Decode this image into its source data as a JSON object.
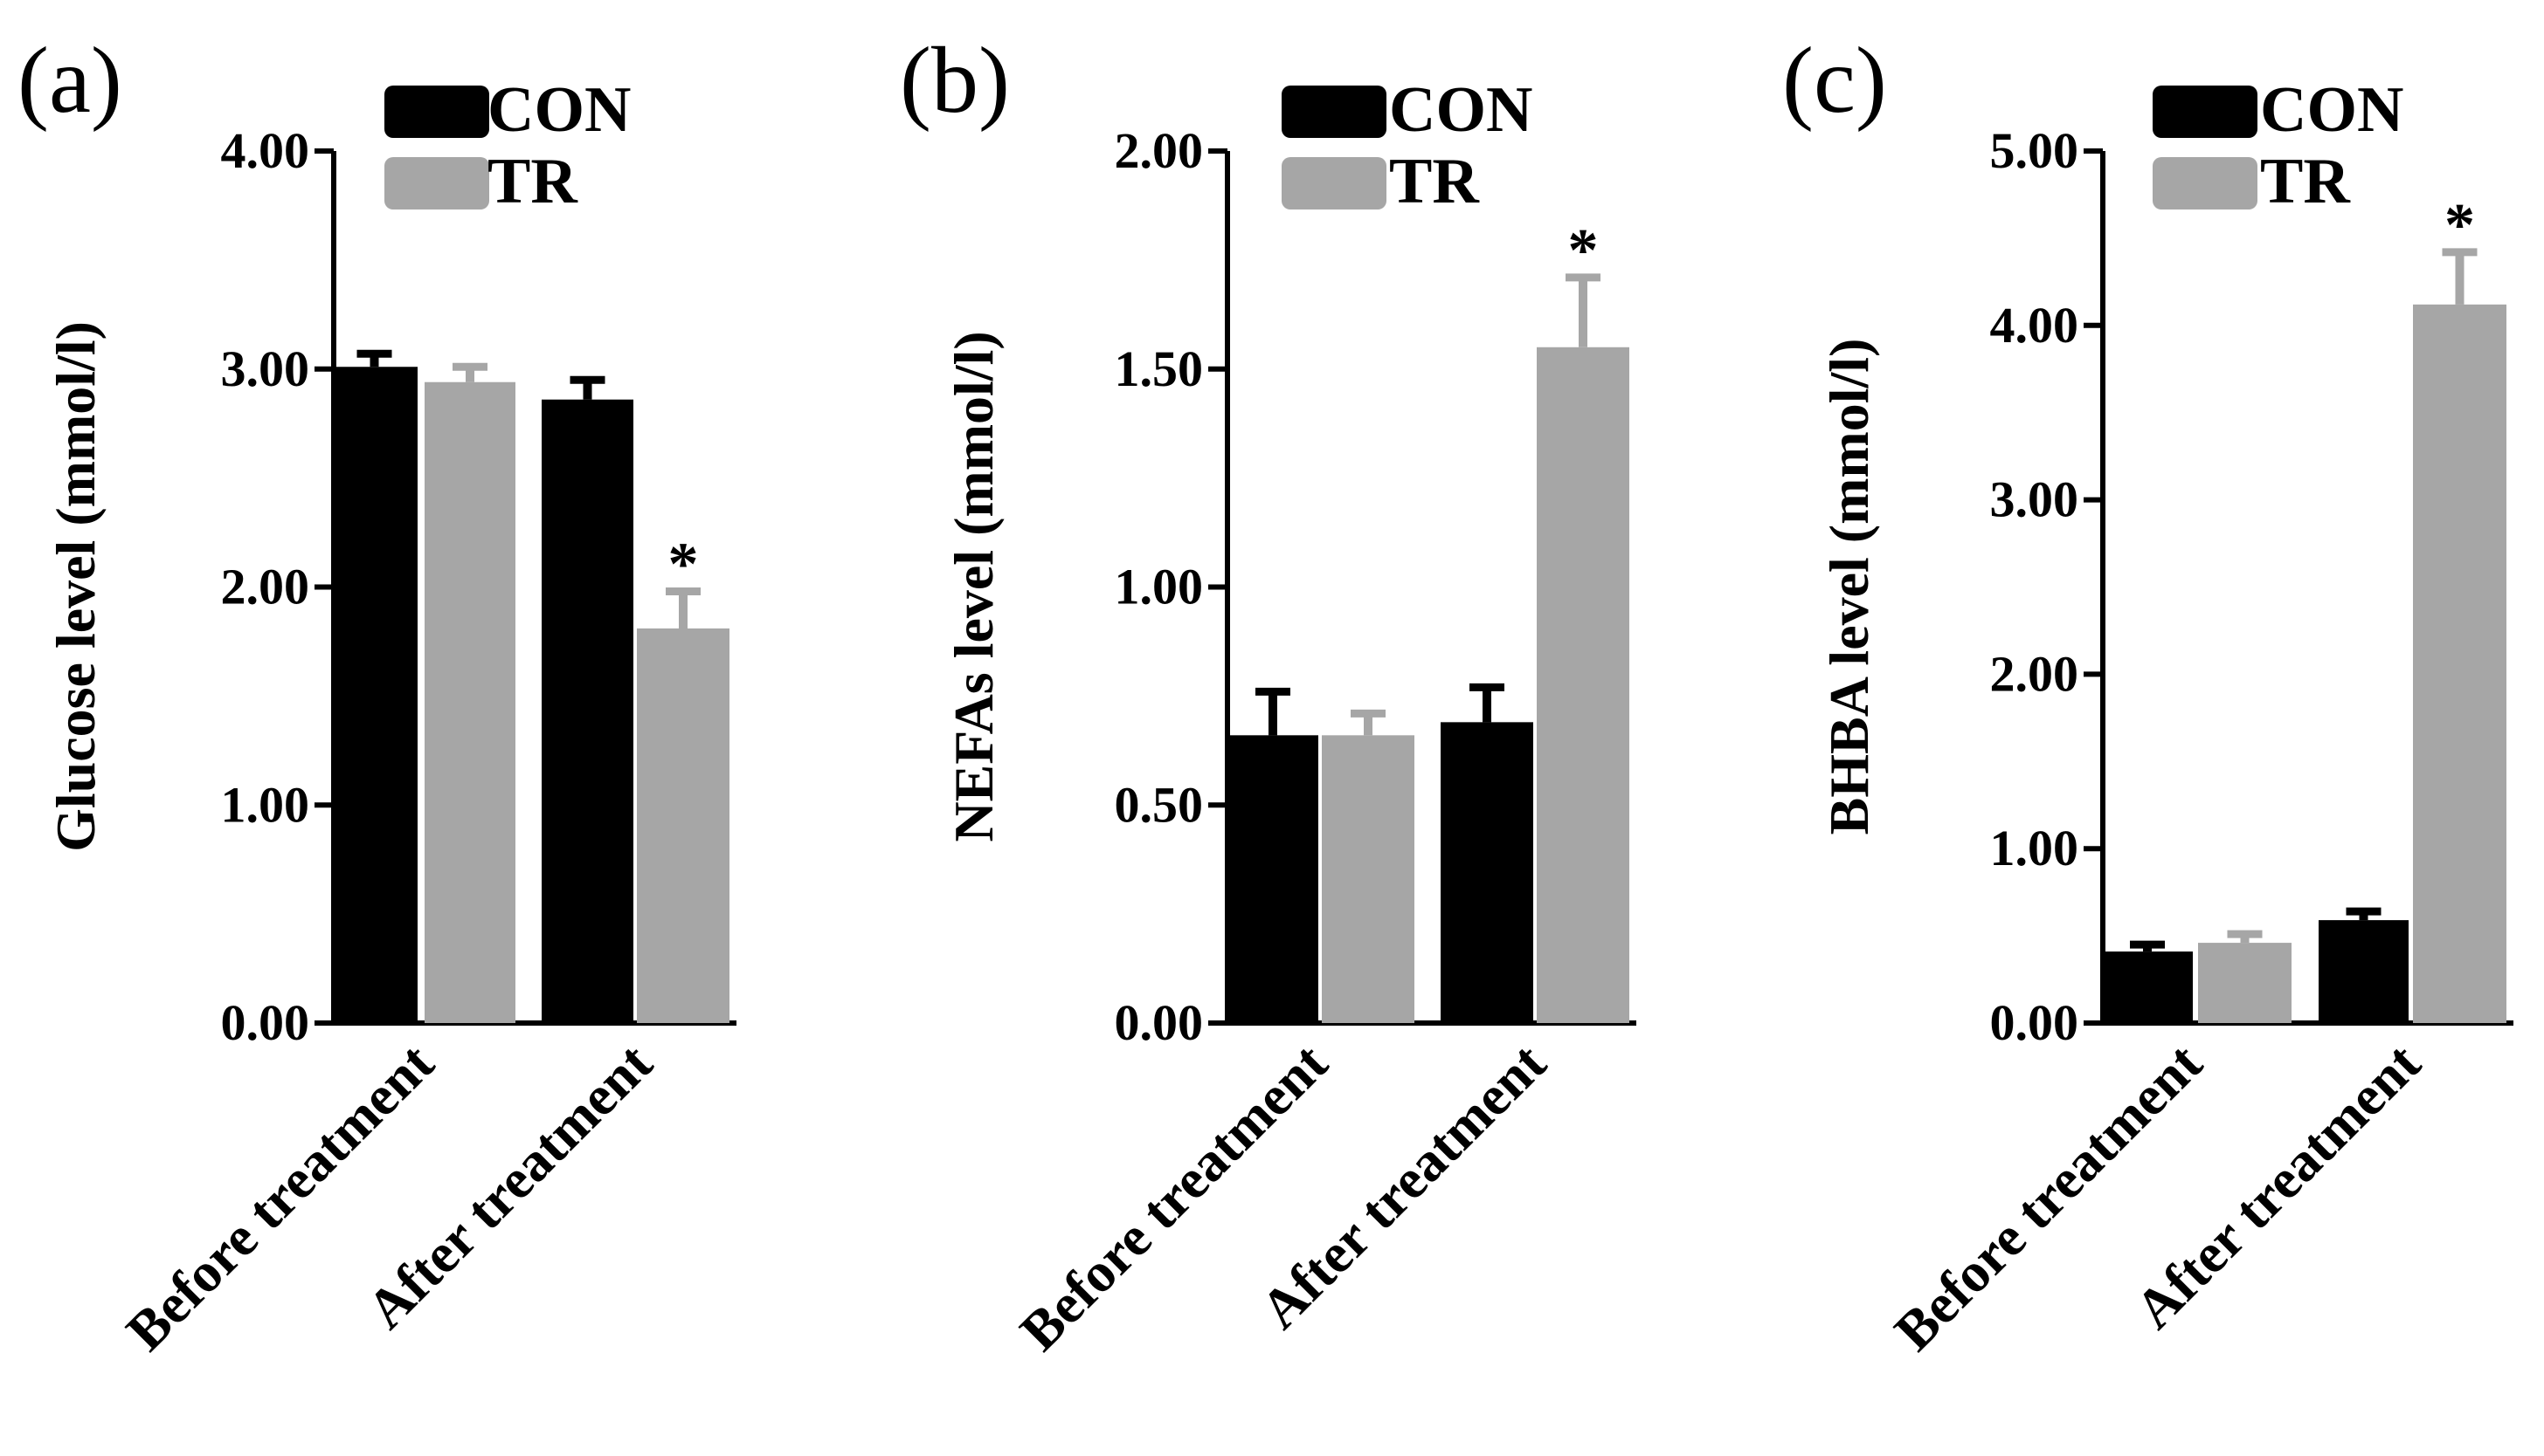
{
  "colors": {
    "CON": "#000000",
    "TR": "#a6a6a6",
    "axis": "#000000"
  },
  "chart_data": [
    {
      "type": "bar",
      "panel_label": "(a)",
      "title": "",
      "categories": [
        "Before treatment",
        "After treatment"
      ],
      "series": [
        {
          "name": "CON",
          "values": [
            3.01,
            2.86
          ],
          "errors": [
            0.06,
            0.09
          ]
        },
        {
          "name": "TR",
          "values": [
            2.94,
            1.81
          ],
          "errors": [
            0.07,
            0.17
          ]
        }
      ],
      "significance": [
        {
          "category": 1,
          "series": 1,
          "label": "*"
        }
      ],
      "xlabel": "",
      "ylabel": "Glucose level (mmol/l)",
      "ylim": [
        0,
        4
      ],
      "yticks": [
        0,
        1,
        2,
        3,
        4
      ],
      "ytick_labels": [
        "0.00",
        "1.00",
        "2.00",
        "3.00",
        "4.00"
      ],
      "legend": {
        "position": "top-right",
        "entries": [
          "CON",
          "TR"
        ]
      }
    },
    {
      "type": "bar",
      "panel_label": "(b)",
      "title": "",
      "categories": [
        "Before treatment",
        "After treatment"
      ],
      "series": [
        {
          "name": "CON",
          "values": [
            0.66,
            0.69
          ],
          "errors": [
            0.1,
            0.08
          ]
        },
        {
          "name": "TR",
          "values": [
            0.66,
            1.55
          ],
          "errors": [
            0.05,
            0.16
          ]
        }
      ],
      "significance": [
        {
          "category": 1,
          "series": 1,
          "label": "*"
        }
      ],
      "xlabel": "",
      "ylabel": "NEFAs level (mmol/l)",
      "ylim": [
        0,
        2
      ],
      "yticks": [
        0,
        0.5,
        1,
        1.5,
        2
      ],
      "ytick_labels": [
        "0.00",
        "0.50",
        "1.00",
        "1.50",
        "2.00"
      ],
      "legend": {
        "position": "top-right",
        "entries": [
          "CON",
          "TR"
        ]
      }
    },
    {
      "type": "bar",
      "panel_label": "(c)",
      "title": "",
      "categories": [
        "Before treatment",
        "After treatment"
      ],
      "series": [
        {
          "name": "CON",
          "values": [
            0.41,
            0.59
          ],
          "errors": [
            0.04,
            0.05
          ]
        },
        {
          "name": "TR",
          "values": [
            0.46,
            4.12
          ],
          "errors": [
            0.05,
            0.3
          ]
        }
      ],
      "significance": [
        {
          "category": 1,
          "series": 1,
          "label": "*"
        }
      ],
      "xlabel": "",
      "ylabel": "BHBA level (mmol/l)",
      "ylim": [
        0,
        5
      ],
      "yticks": [
        0,
        1,
        2,
        3,
        4,
        5
      ],
      "ytick_labels": [
        "0.00",
        "1.00",
        "2.00",
        "3.00",
        "4.00",
        "5.00"
      ],
      "legend": {
        "position": "top-right",
        "entries": [
          "CON",
          "TR"
        ]
      }
    }
  ]
}
